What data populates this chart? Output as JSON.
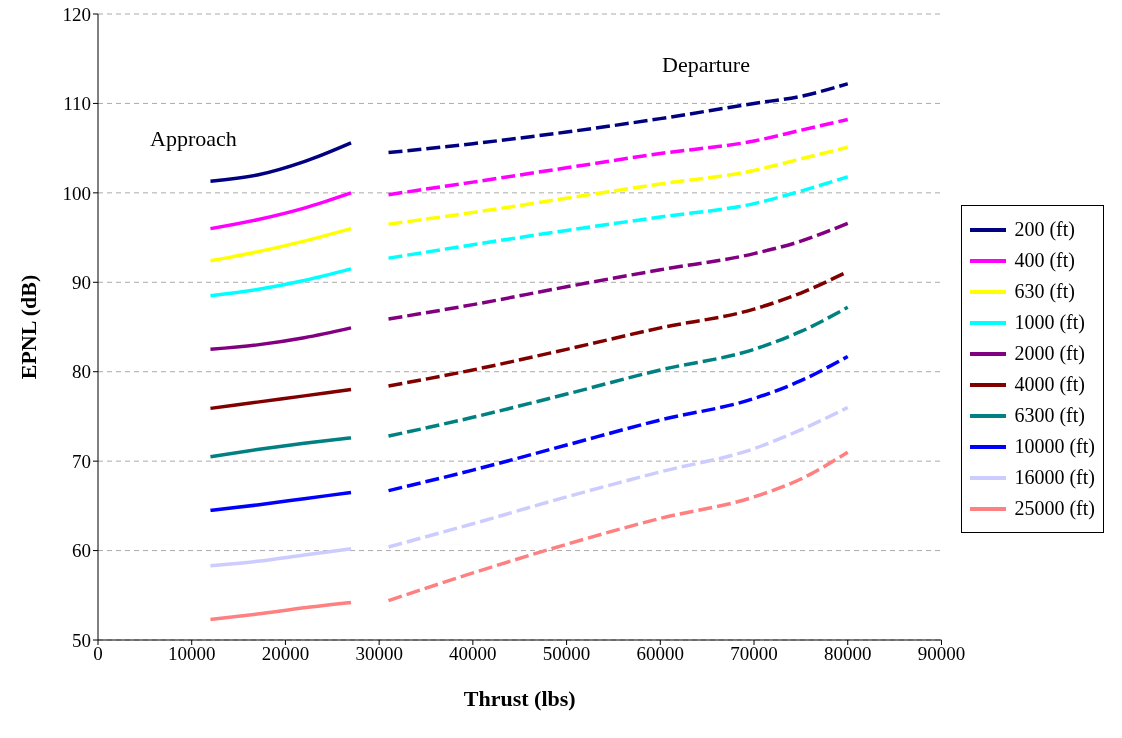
{
  "chart_data": {
    "type": "line",
    "xlabel": "Thrust (lbs)",
    "ylabel": "EPNL (dB)",
    "xlim": [
      0,
      90000
    ],
    "xticks": [
      0,
      10000,
      20000,
      30000,
      40000,
      50000,
      60000,
      70000,
      80000,
      90000
    ],
    "ylim": [
      50,
      120
    ],
    "yticks": [
      50,
      60,
      70,
      80,
      90,
      100,
      110,
      120
    ],
    "grid": "y",
    "legend": "right",
    "marker": "none",
    "annotations": [
      "Approach",
      "Departure"
    ],
    "series": [
      {
        "name": "200 (ft)",
        "color": "#000080",
        "line_style": "solid",
        "x": [
          12000,
          17000,
          22000,
          27000
        ],
        "values": [
          101.3,
          102.0,
          103.5,
          105.6
        ]
      },
      {
        "color": "#000080",
        "line_style": "dashed",
        "x": [
          31000,
          40000,
          50000,
          60000,
          70000,
          75000,
          80000
        ],
        "values": [
          104.5,
          105.5,
          106.8,
          108.3,
          110.0,
          110.8,
          112.2
        ]
      },
      {
        "name": "400 (ft)",
        "color": "#ff00ff",
        "line_style": "solid",
        "x": [
          12000,
          17000,
          22000,
          27000
        ],
        "values": [
          96.0,
          97.0,
          98.3,
          100.0
        ]
      },
      {
        "color": "#ff00ff",
        "line_style": "dashed",
        "x": [
          31000,
          40000,
          50000,
          60000,
          70000,
          75000,
          80000
        ],
        "values": [
          99.8,
          101.2,
          102.8,
          104.4,
          105.8,
          107.0,
          108.2
        ]
      },
      {
        "name": "630 (ft)",
        "color": "#ffff00",
        "line_style": "solid",
        "x": [
          12000,
          17000,
          22000,
          27000
        ],
        "values": [
          92.4,
          93.4,
          94.6,
          96.0
        ]
      },
      {
        "color": "#ffff00",
        "line_style": "dashed",
        "x": [
          31000,
          40000,
          50000,
          60000,
          70000,
          75000,
          80000
        ],
        "values": [
          96.5,
          97.8,
          99.4,
          101.0,
          102.5,
          103.8,
          105.1
        ]
      },
      {
        "name": "1000 (ft)",
        "color": "#00ffff",
        "line_style": "solid",
        "x": [
          12000,
          17000,
          22000,
          27000
        ],
        "values": [
          88.5,
          89.2,
          90.2,
          91.5
        ]
      },
      {
        "color": "#00ffff",
        "line_style": "dashed",
        "x": [
          31000,
          40000,
          50000,
          60000,
          70000,
          75000,
          80000
        ],
        "values": [
          92.7,
          94.2,
          95.8,
          97.3,
          98.8,
          100.2,
          101.8
        ]
      },
      {
        "name": "2000 (ft)",
        "color": "#800080",
        "line_style": "solid",
        "x": [
          12000,
          17000,
          22000,
          27000
        ],
        "values": [
          82.5,
          83.0,
          83.8,
          84.9
        ]
      },
      {
        "color": "#800080",
        "line_style": "dashed",
        "x": [
          31000,
          40000,
          50000,
          60000,
          70000,
          75000,
          80000
        ],
        "values": [
          85.9,
          87.5,
          89.5,
          91.4,
          93.2,
          94.6,
          96.6
        ]
      },
      {
        "name": "4000 (ft)",
        "color": "#800000",
        "line_style": "solid",
        "x": [
          12000,
          17000,
          22000,
          27000
        ],
        "values": [
          75.9,
          76.6,
          77.3,
          78.0
        ]
      },
      {
        "color": "#800000",
        "line_style": "dashed",
        "x": [
          31000,
          40000,
          50000,
          60000,
          70000,
          75000,
          80000
        ],
        "values": [
          78.4,
          80.2,
          82.5,
          84.9,
          87.0,
          88.8,
          91.2
        ]
      },
      {
        "name": "6300 (ft)",
        "color": "#008080",
        "line_style": "solid",
        "x": [
          12000,
          17000,
          22000,
          27000
        ],
        "values": [
          70.5,
          71.3,
          72.0,
          72.6
        ]
      },
      {
        "color": "#008080",
        "line_style": "dashed",
        "x": [
          31000,
          40000,
          50000,
          60000,
          70000,
          75000,
          80000
        ],
        "values": [
          72.8,
          74.9,
          77.5,
          80.2,
          82.5,
          84.5,
          87.2
        ]
      },
      {
        "name": "10000 (ft)",
        "color": "#0000ff",
        "line_style": "solid",
        "x": [
          12000,
          17000,
          22000,
          27000
        ],
        "values": [
          64.5,
          65.1,
          65.8,
          66.5
        ]
      },
      {
        "color": "#0000ff",
        "line_style": "dashed",
        "x": [
          31000,
          40000,
          50000,
          60000,
          70000,
          75000,
          80000
        ],
        "values": [
          66.7,
          69.0,
          71.8,
          74.6,
          77.0,
          79.0,
          81.7
        ]
      },
      {
        "name": "16000 (ft)",
        "color": "#ccccff",
        "line_style": "solid",
        "x": [
          12000,
          17000,
          22000,
          27000
        ],
        "values": [
          58.3,
          58.8,
          59.5,
          60.2
        ]
      },
      {
        "color": "#ccccff",
        "line_style": "dashed",
        "x": [
          31000,
          40000,
          50000,
          60000,
          70000,
          75000,
          80000
        ],
        "values": [
          60.4,
          63.0,
          66.0,
          68.8,
          71.4,
          73.5,
          76.0
        ]
      },
      {
        "name": "25000 (ft)",
        "color": "#ff8080",
        "line_style": "solid",
        "x": [
          12000,
          17000,
          22000,
          27000
        ],
        "values": [
          52.3,
          52.9,
          53.6,
          54.2
        ]
      },
      {
        "color": "#ff8080",
        "line_style": "dashed",
        "x": [
          31000,
          40000,
          50000,
          60000,
          70000,
          75000,
          80000
        ],
        "values": [
          54.4,
          57.5,
          60.7,
          63.6,
          66.0,
          68.0,
          71.0
        ]
      }
    ]
  }
}
